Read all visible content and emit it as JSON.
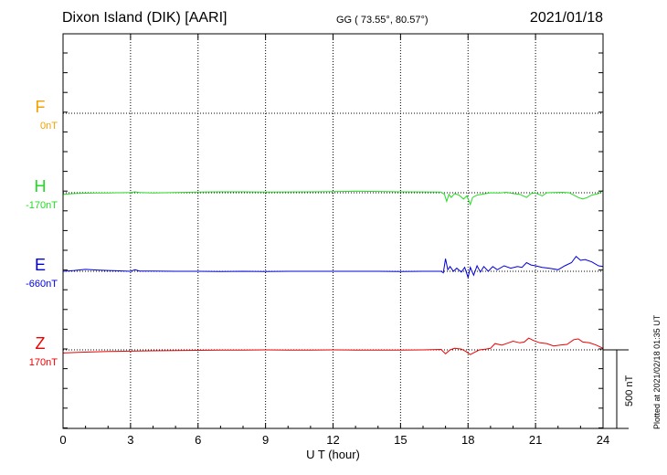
{
  "header": {
    "station": "Dixon Island (DIK)  [AARI]",
    "coords": "GG ( 73.55°,  80.57°)",
    "date": "2021/01/18"
  },
  "footnote": "Plotted at 2021/02/18 01:35 UT",
  "scale_label": "500 nT",
  "chart_data": {
    "type": "line",
    "xlabel": "U T (hour)",
    "x_ticks": [
      0,
      3,
      6,
      9,
      12,
      15,
      18,
      21,
      24
    ],
    "x_tick_labels": [
      "0",
      "3",
      "6",
      "9",
      "12",
      "15",
      "18",
      "21",
      "24"
    ],
    "xlim": [
      0,
      24
    ],
    "grid": true,
    "scale_bar_nT": 500,
    "series": [
      {
        "name": "F",
        "baseline_label": "0nT",
        "baseline_nT": 0,
        "color": "#f5a000",
        "has_data": false,
        "points": []
      },
      {
        "name": "H",
        "baseline_label": "-170nT",
        "baseline_nT": -170,
        "color": "#22dd22",
        "has_data": true,
        "points": [
          [
            0,
            -10
          ],
          [
            0.5,
            -5
          ],
          [
            1,
            -3
          ],
          [
            1.5,
            -2
          ],
          [
            2,
            -1
          ],
          [
            2.5,
            0
          ],
          [
            3,
            2
          ],
          [
            3.2,
            6
          ],
          [
            3.4,
            2
          ],
          [
            4,
            -2
          ],
          [
            5,
            2
          ],
          [
            6,
            4
          ],
          [
            7,
            6
          ],
          [
            8,
            6
          ],
          [
            9,
            4
          ],
          [
            10,
            5
          ],
          [
            11,
            6
          ],
          [
            12,
            7
          ],
          [
            13,
            10
          ],
          [
            14,
            8
          ],
          [
            15,
            6
          ],
          [
            16,
            5
          ],
          [
            16.8,
            4
          ],
          [
            16.95,
            -10
          ],
          [
            17.05,
            -55
          ],
          [
            17.15,
            -10
          ],
          [
            17.25,
            -30
          ],
          [
            17.4,
            -5
          ],
          [
            17.6,
            -15
          ],
          [
            17.8,
            -40
          ],
          [
            17.95,
            -20
          ],
          [
            18.1,
            -75
          ],
          [
            18.2,
            -30
          ],
          [
            18.4,
            -15
          ],
          [
            18.6,
            -10
          ],
          [
            18.8,
            -5
          ],
          [
            19,
            0
          ],
          [
            19.4,
            -2
          ],
          [
            19.7,
            3
          ],
          [
            20,
            -5
          ],
          [
            20.3,
            -10
          ],
          [
            20.6,
            -30
          ],
          [
            20.8,
            -5
          ],
          [
            21,
            -2
          ],
          [
            21.3,
            -20
          ],
          [
            21.5,
            0
          ],
          [
            21.8,
            2
          ],
          [
            22.2,
            3
          ],
          [
            22.5,
            0
          ],
          [
            22.7,
            -15
          ],
          [
            22.9,
            -30
          ],
          [
            23.1,
            -40
          ],
          [
            23.3,
            -30
          ],
          [
            23.5,
            -15
          ],
          [
            23.8,
            -5
          ],
          [
            24,
            15
          ]
        ]
      },
      {
        "name": "E",
        "baseline_label": "-660nT",
        "baseline_nT": -660,
        "color": "#0000dd",
        "has_data": true,
        "points": [
          [
            0,
            0
          ],
          [
            0.5,
            5
          ],
          [
            1,
            12
          ],
          [
            1.5,
            8
          ],
          [
            2,
            5
          ],
          [
            2.5,
            3
          ],
          [
            3,
            0
          ],
          [
            3.2,
            10
          ],
          [
            3.4,
            2
          ],
          [
            4,
            1
          ],
          [
            5,
            0
          ],
          [
            6,
            0
          ],
          [
            7,
            -2
          ],
          [
            8,
            0
          ],
          [
            9,
            -2
          ],
          [
            10,
            0
          ],
          [
            11,
            0
          ],
          [
            12,
            0
          ],
          [
            13,
            0
          ],
          [
            14,
            0
          ],
          [
            15,
            -1
          ],
          [
            16,
            0
          ],
          [
            16.8,
            0
          ],
          [
            16.9,
            -10
          ],
          [
            17,
            80
          ],
          [
            17.1,
            10
          ],
          [
            17.2,
            30
          ],
          [
            17.35,
            0
          ],
          [
            17.5,
            20
          ],
          [
            17.7,
            -5
          ],
          [
            17.85,
            25
          ],
          [
            18,
            -40
          ],
          [
            18.1,
            25
          ],
          [
            18.25,
            -25
          ],
          [
            18.4,
            35
          ],
          [
            18.55,
            -5
          ],
          [
            18.7,
            30
          ],
          [
            18.9,
            0
          ],
          [
            19.1,
            30
          ],
          [
            19.3,
            10
          ],
          [
            19.6,
            35
          ],
          [
            19.9,
            20
          ],
          [
            20.2,
            30
          ],
          [
            20.4,
            25
          ],
          [
            20.6,
            55
          ],
          [
            20.8,
            40
          ],
          [
            21,
            35
          ],
          [
            21.3,
            25
          ],
          [
            21.6,
            20
          ],
          [
            22,
            10
          ],
          [
            22.3,
            35
          ],
          [
            22.6,
            55
          ],
          [
            22.8,
            95
          ],
          [
            23,
            70
          ],
          [
            23.2,
            75
          ],
          [
            23.5,
            60
          ],
          [
            23.8,
            35
          ],
          [
            24,
            30
          ]
        ]
      },
      {
        "name": "Z",
        "baseline_label": "170nT",
        "baseline_nT": 170,
        "color": "#ee0000",
        "has_data": true,
        "points": [
          [
            0,
            -20
          ],
          [
            0.8,
            -15
          ],
          [
            2,
            -10
          ],
          [
            3,
            -8
          ],
          [
            4,
            -6
          ],
          [
            5,
            -4
          ],
          [
            6,
            -3
          ],
          [
            7,
            -2
          ],
          [
            8,
            -1
          ],
          [
            9,
            0
          ],
          [
            10,
            -1
          ],
          [
            11,
            -1
          ],
          [
            12,
            0
          ],
          [
            13,
            -1
          ],
          [
            14,
            -2
          ],
          [
            15,
            -1
          ],
          [
            16,
            0
          ],
          [
            16.8,
            3
          ],
          [
            17,
            -25
          ],
          [
            17.2,
            0
          ],
          [
            17.4,
            10
          ],
          [
            17.7,
            5
          ],
          [
            17.9,
            -10
          ],
          [
            18.1,
            -30
          ],
          [
            18.3,
            -15
          ],
          [
            18.5,
            0
          ],
          [
            18.8,
            5
          ],
          [
            19,
            10
          ],
          [
            19.2,
            40
          ],
          [
            19.5,
            30
          ],
          [
            19.8,
            45
          ],
          [
            20,
            55
          ],
          [
            20.3,
            45
          ],
          [
            20.5,
            50
          ],
          [
            20.7,
            75
          ],
          [
            20.9,
            60
          ],
          [
            21.2,
            45
          ],
          [
            21.5,
            40
          ],
          [
            21.8,
            25
          ],
          [
            22.1,
            30
          ],
          [
            22.4,
            35
          ],
          [
            22.7,
            65
          ],
          [
            22.9,
            70
          ],
          [
            23.1,
            50
          ],
          [
            23.4,
            45
          ],
          [
            23.7,
            30
          ],
          [
            24,
            10
          ]
        ]
      }
    ]
  }
}
